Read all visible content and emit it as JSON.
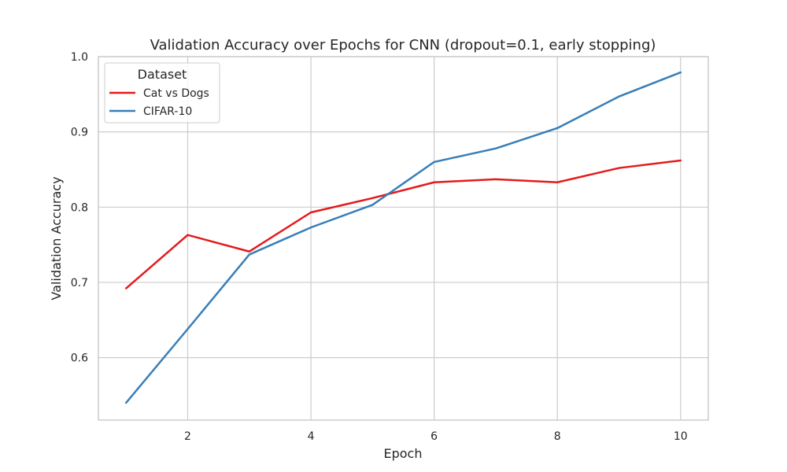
{
  "chart_data": {
    "type": "line",
    "title": "Validation Accuracy over Epochs for CNN (dropout=0.1, early stopping)",
    "xlabel": "Epoch",
    "ylabel": "Validation Accuracy",
    "xlim": [
      0.55,
      10.45
    ],
    "ylim": [
      0.517,
      1.0
    ],
    "xticks": [
      2,
      4,
      6,
      8,
      10
    ],
    "yticks": [
      0.6,
      0.7,
      0.8,
      0.9,
      1.0
    ],
    "xtick_labels": [
      "2",
      "4",
      "6",
      "8",
      "10"
    ],
    "ytick_labels": [
      "0.6",
      "0.7",
      "0.8",
      "0.9",
      "1.0"
    ],
    "grid": true,
    "legend": {
      "title": "Dataset",
      "placement": "top-left"
    },
    "x": [
      1,
      2,
      3,
      4,
      5,
      6,
      7,
      8,
      9,
      10
    ],
    "series": [
      {
        "name": "Cat vs Dogs",
        "color": "#e41a1c",
        "values": [
          0.692,
          0.763,
          0.741,
          0.793,
          0.812,
          0.833,
          0.837,
          0.833,
          0.852,
          0.862
        ]
      },
      {
        "name": "CIFAR-10",
        "color": "#377eb8",
        "values": [
          0.54,
          0.638,
          0.737,
          0.773,
          0.803,
          0.86,
          0.878,
          0.905,
          0.947,
          0.979
        ]
      }
    ]
  }
}
